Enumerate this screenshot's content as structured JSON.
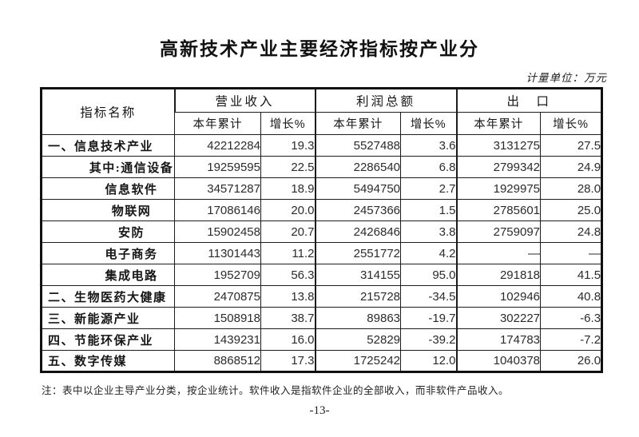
{
  "page": {
    "title": "高新技术产业主要经济指标按产业分",
    "unit_note": "计量单位：万元",
    "footnote": "注：表中以企业主导产业分类，按企业统计。软件收入是指软件企业的全部收入，而非软件产品收入。",
    "page_number": "-13-"
  },
  "table": {
    "corner_header": "指标名称",
    "groups": [
      {
        "label": "营业收入"
      },
      {
        "label": "利润总额"
      },
      {
        "label": "出　口"
      }
    ],
    "sub_headers": [
      "本年累计",
      "增长%"
    ],
    "rows": [
      {
        "label": "一、信息技术产业",
        "level": "parent",
        "values": [
          "42212284",
          "19.3",
          "5527488",
          "3.6",
          "3131275",
          "27.5"
        ]
      },
      {
        "label": "其中:通信设备",
        "level": "child",
        "values": [
          "19259595",
          "22.5",
          "2286540",
          "6.8",
          "2799342",
          "24.9"
        ]
      },
      {
        "label": "信息软件",
        "level": "child",
        "values": [
          "34571287",
          "18.9",
          "5494750",
          "2.7",
          "1929975",
          "28.0"
        ]
      },
      {
        "label": "物联网",
        "level": "child",
        "values": [
          "17086146",
          "20.0",
          "2457366",
          "1.5",
          "2785601",
          "25.0"
        ]
      },
      {
        "label": "安防",
        "level": "child",
        "values": [
          "15902458",
          "20.7",
          "2426846",
          "3.8",
          "2759097",
          "24.8"
        ]
      },
      {
        "label": "电子商务",
        "level": "child",
        "values": [
          "11301443",
          "11.2",
          "2551772",
          "4.2",
          "—",
          "—"
        ]
      },
      {
        "label": "集成电路",
        "level": "child",
        "values": [
          "1952709",
          "56.3",
          "314155",
          "95.0",
          "291818",
          "41.5"
        ]
      },
      {
        "label": "二、生物医药大健康",
        "level": "parent",
        "values": [
          "2470875",
          "13.8",
          "215728",
          "-34.5",
          "102946",
          "40.8"
        ]
      },
      {
        "label": "三、新能源产业",
        "level": "parent",
        "values": [
          "1508918",
          "38.7",
          "89863",
          "-19.7",
          "302227",
          "-6.3"
        ]
      },
      {
        "label": "四、节能环保产业",
        "level": "parent",
        "values": [
          "1439231",
          "16.0",
          "52829",
          "-39.2",
          "174783",
          "-7.2"
        ]
      },
      {
        "label": "五、数字传媒",
        "level": "parent",
        "values": [
          "8868512",
          "17.3",
          "1725242",
          "12.0",
          "1040378",
          "26.0"
        ]
      }
    ]
  }
}
